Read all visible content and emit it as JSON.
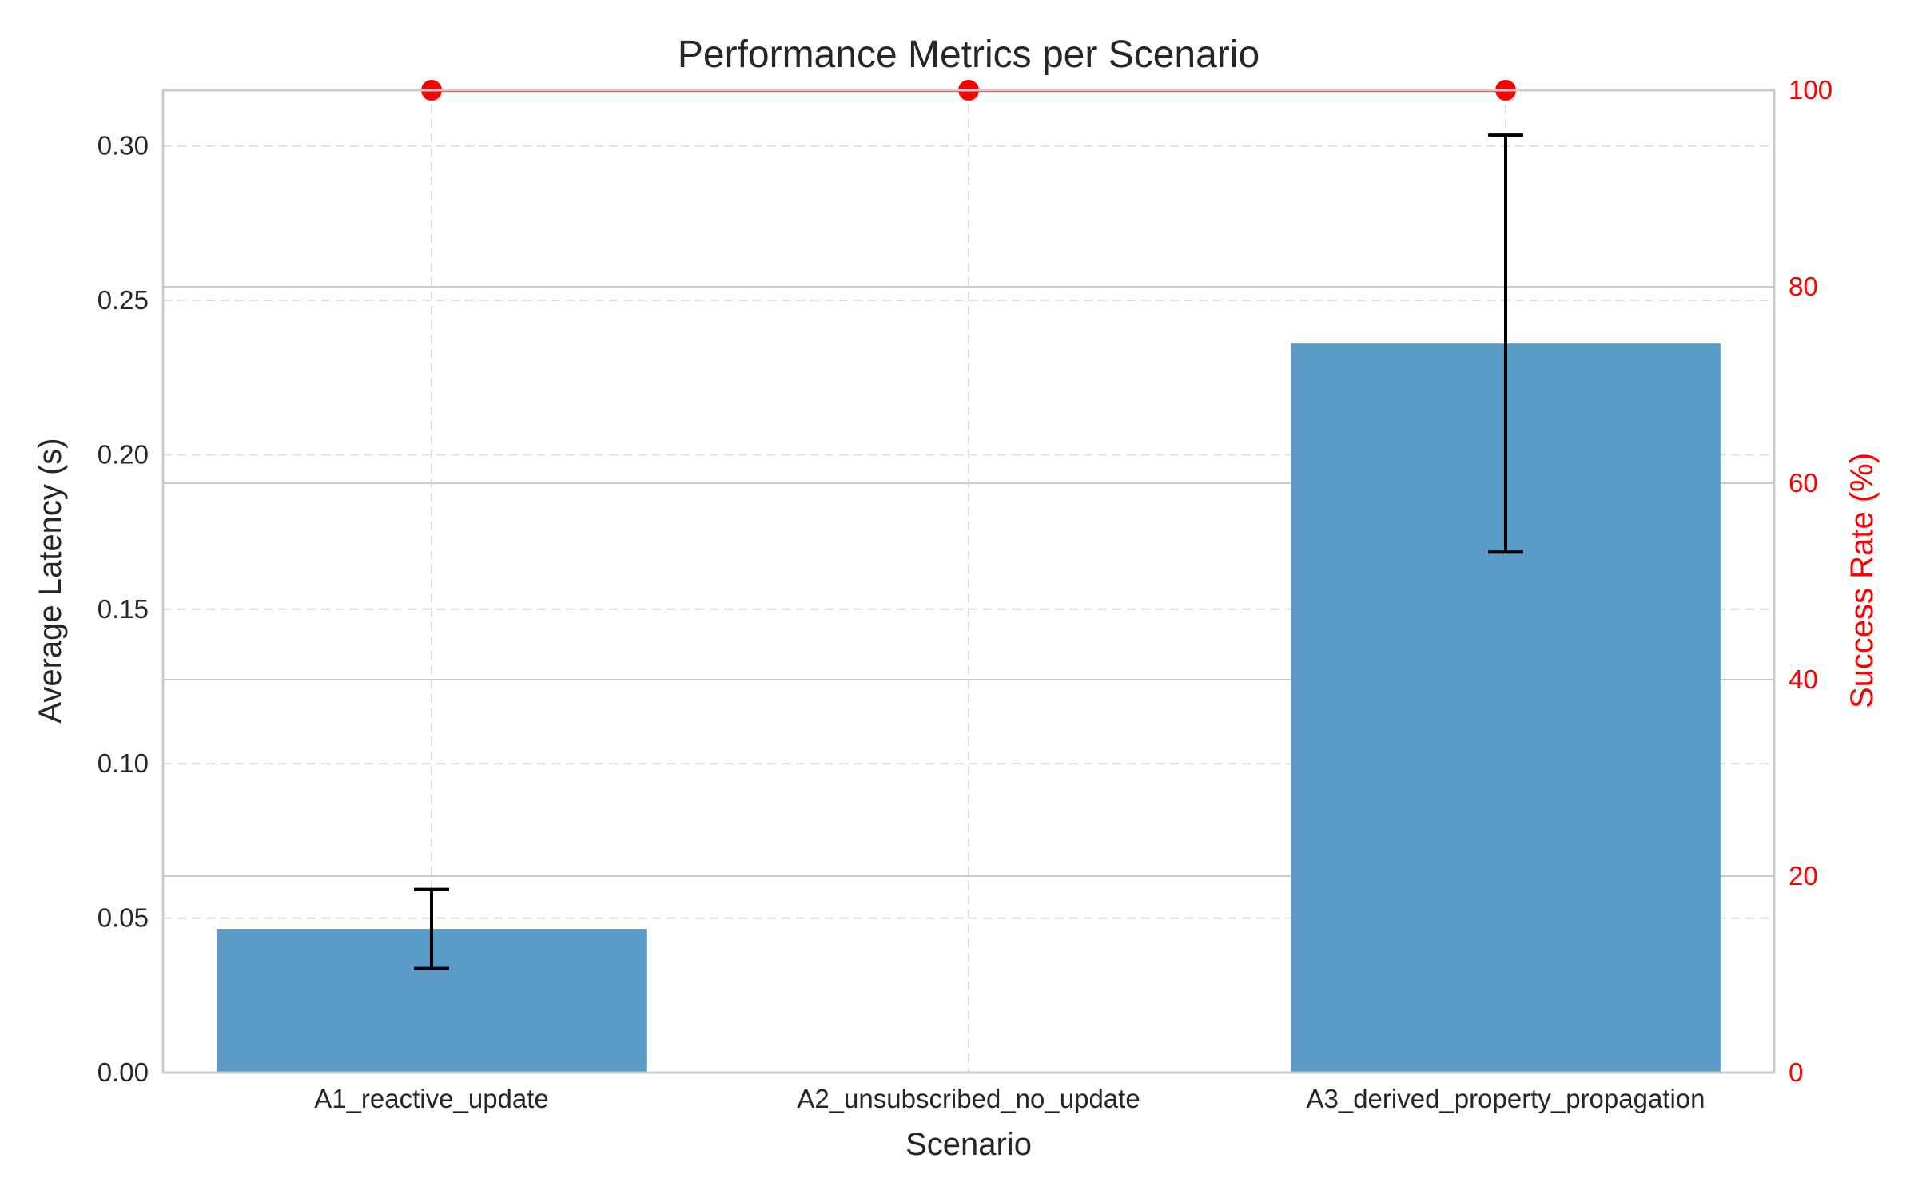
{
  "chart_data": {
    "type": "bar",
    "title": "Performance Metrics per Scenario",
    "xlabel": "Scenario",
    "ylabel": "Average Latency (s)",
    "ylabel_right": "Success Rate (%)",
    "categories": [
      "A1_reactive_update",
      "A2_unsubscribed_no_update",
      "A3_derived_property_propagation"
    ],
    "series": [
      {
        "name": "Average Latency (s)",
        "type": "bar",
        "axis": "left",
        "values": [
          0.0465,
          0,
          0.236
        ],
        "error": [
          0.0128,
          0,
          0.0675
        ],
        "color": "#5b9bc8"
      },
      {
        "name": "Success Rate (%)",
        "type": "line",
        "axis": "right",
        "values": [
          100,
          100,
          100
        ],
        "color": "#ff0000"
      }
    ],
    "ylim": [
      0,
      0.318
    ],
    "yticks": [
      "0.00",
      "0.05",
      "0.10",
      "0.15",
      "0.20",
      "0.25",
      "0.30"
    ],
    "ylim_right": [
      0,
      100
    ],
    "yticks_right": [
      "0",
      "20",
      "40",
      "60",
      "80",
      "100"
    ],
    "grid": true,
    "colors": {
      "bar": "#5b9bc8",
      "line": "#ff0000",
      "errorbar": "#000000",
      "spine": "#cccccc",
      "grid": "#dddddd",
      "right_axis": "#ff0000"
    }
  }
}
